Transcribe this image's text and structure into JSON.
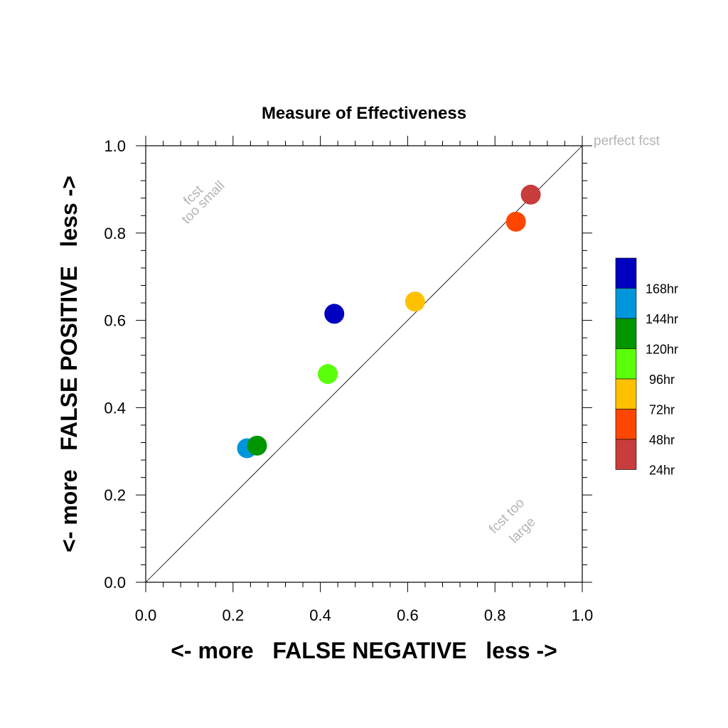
{
  "chart_data": {
    "type": "scatter",
    "title": "Measure of Effectiveness",
    "xlabel": "<- more   FALSE NEGATIVE   less ->",
    "ylabel": "<- more   FALSE POSITIVE   less ->",
    "xlim": [
      0,
      1
    ],
    "ylim": [
      0,
      1
    ],
    "x_ticks": [
      "0.0",
      "0.2",
      "0.4",
      "0.6",
      "0.8",
      "1.0"
    ],
    "y_ticks": [
      "0.0",
      "0.2",
      "0.4",
      "0.6",
      "0.8",
      "1.0"
    ],
    "reference_line": "diagonal y = x",
    "annotations": {
      "perfect": "perfect fcst",
      "too_small_1": "fcst",
      "too_small_2": "too small",
      "too_large_1": "fcst too",
      "too_large_2": "large"
    },
    "legend_placement": "right",
    "series": [
      {
        "name": "168hr",
        "color": "#0000c0",
        "x": 0.432,
        "y": 0.615
      },
      {
        "name": "144hr",
        "color": "#0096dc",
        "x": 0.232,
        "y": 0.307
      },
      {
        "name": "120hr",
        "color": "#009600",
        "x": 0.255,
        "y": 0.313
      },
      {
        "name": "96hr",
        "color": "#5aff0a",
        "x": 0.417,
        "y": 0.477
      },
      {
        "name": "72hr",
        "color": "#ffc000",
        "x": 0.617,
        "y": 0.643
      },
      {
        "name": "48hr",
        "color": "#ff4600",
        "x": 0.848,
        "y": 0.826
      },
      {
        "name": "24hr",
        "color": "#c83c3c",
        "x": 0.882,
        "y": 0.888
      }
    ]
  }
}
